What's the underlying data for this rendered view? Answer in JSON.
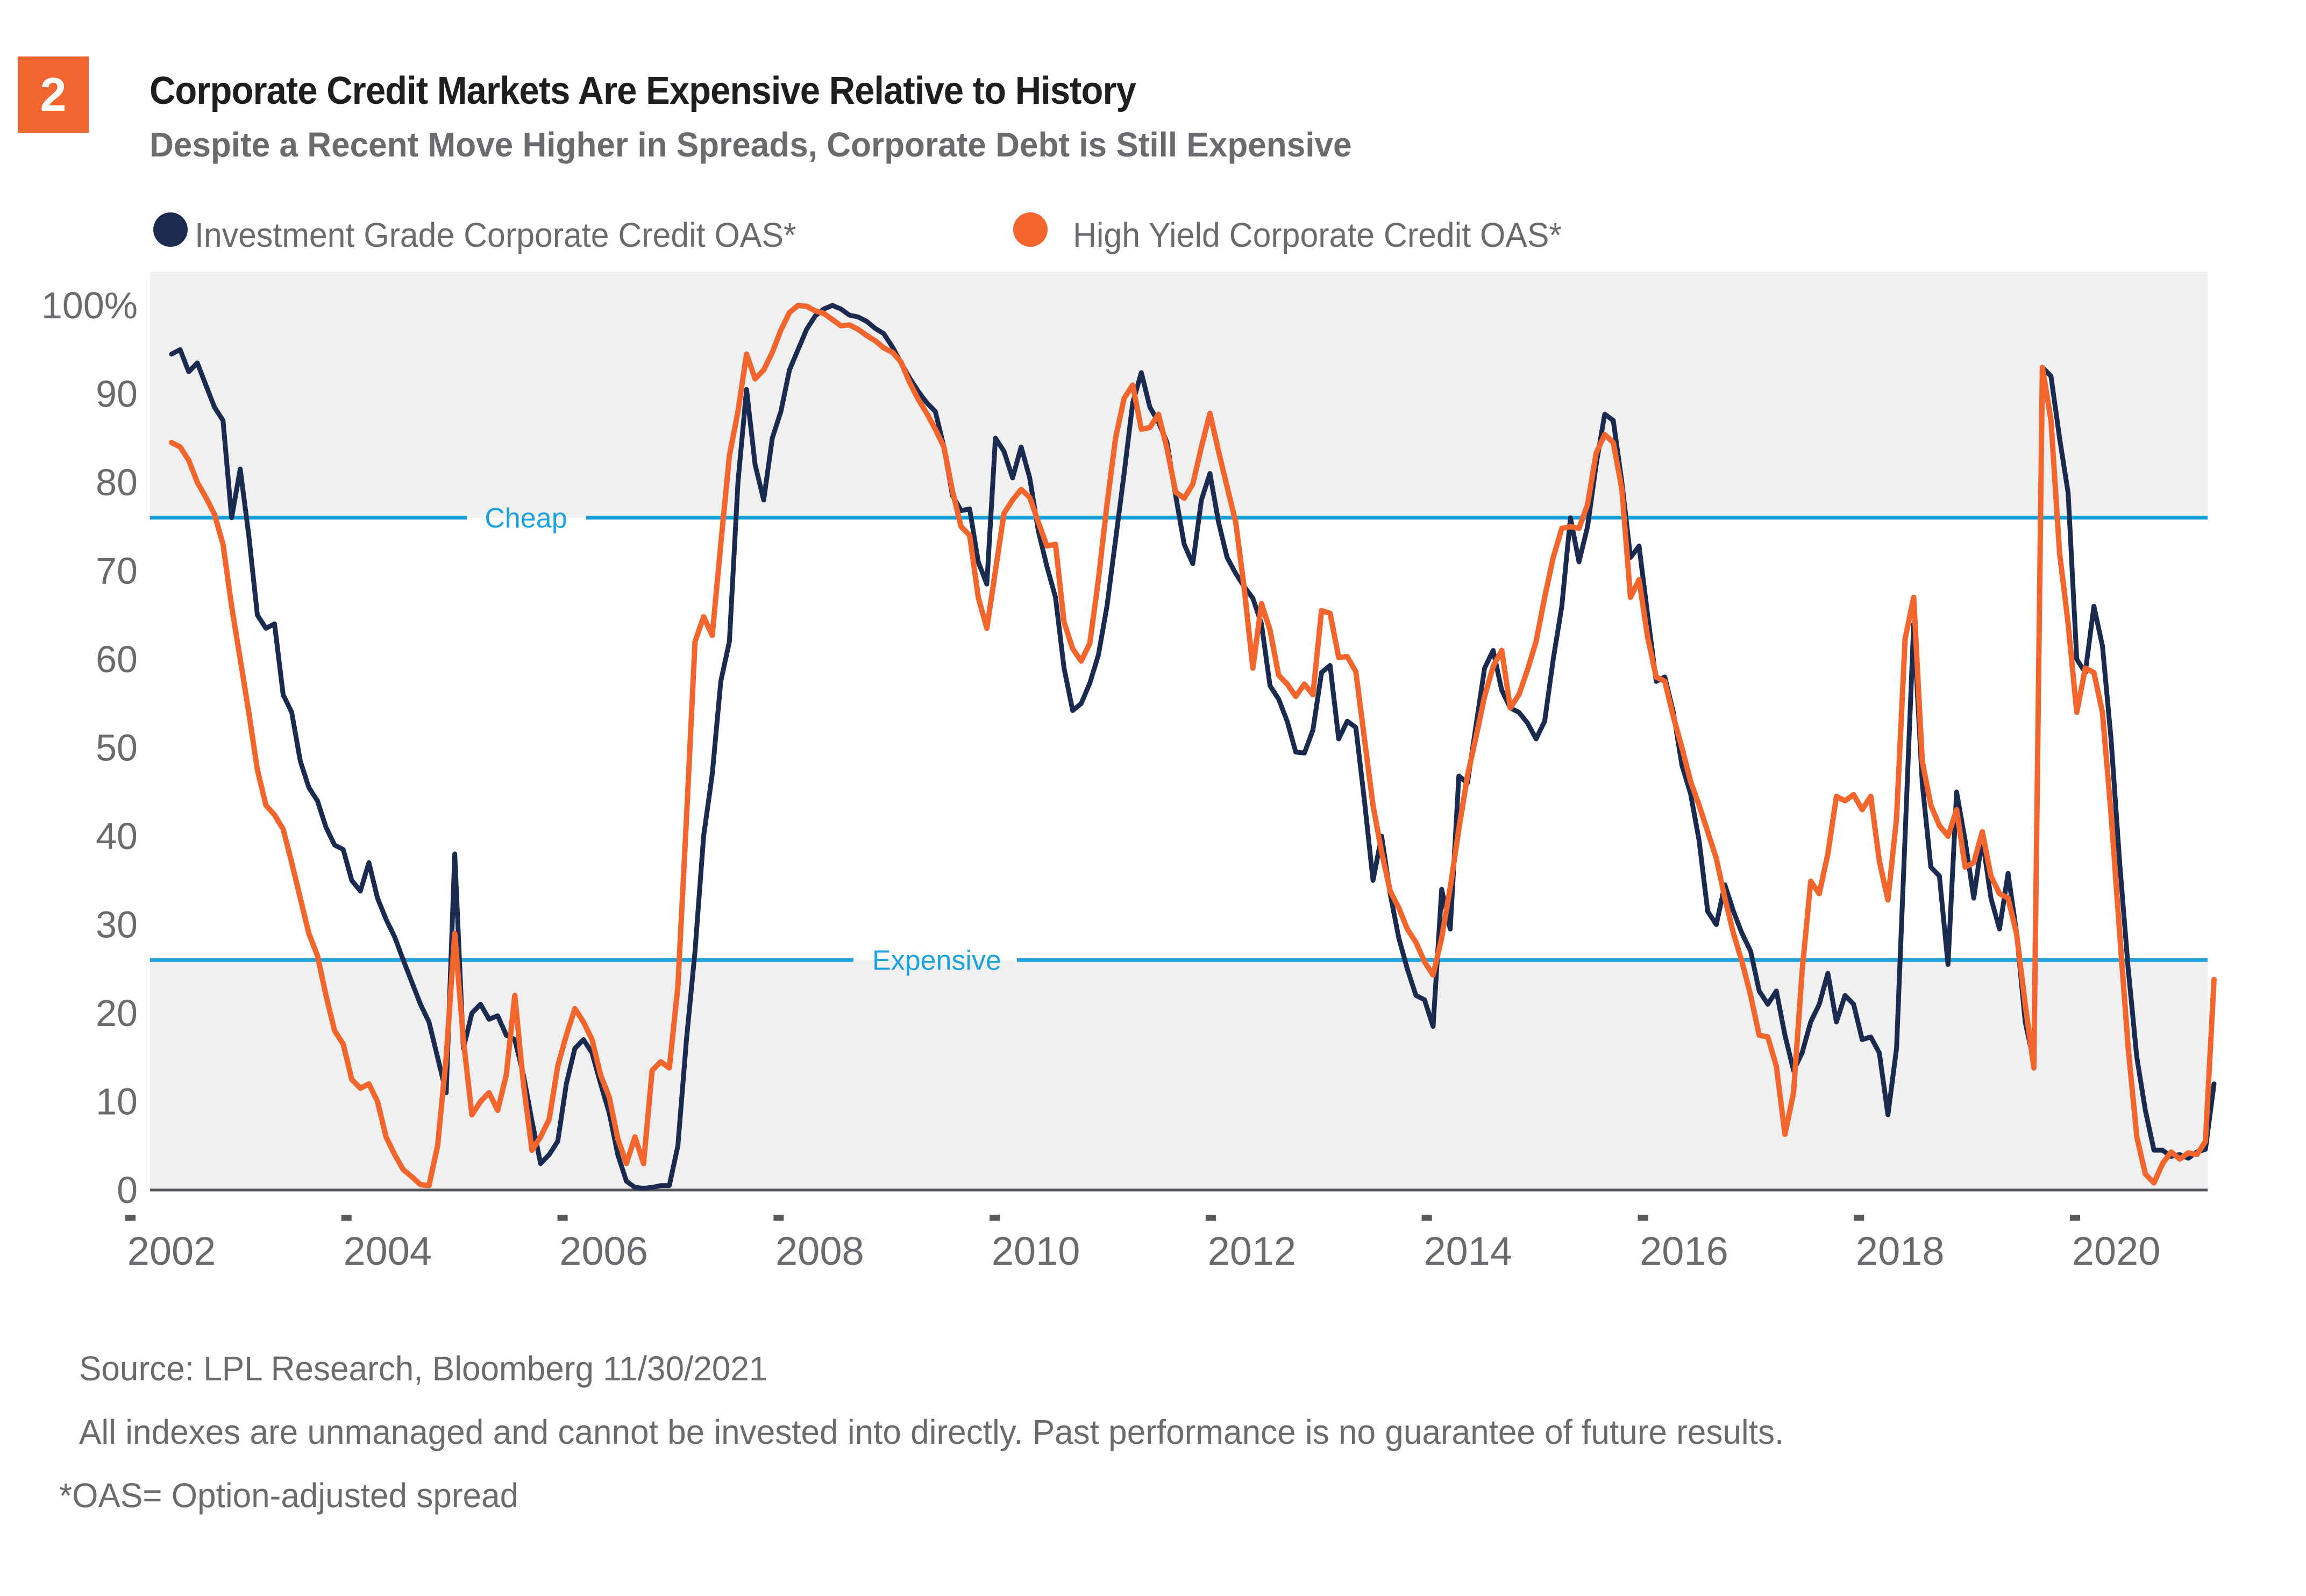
{
  "page": {
    "badge": "2"
  },
  "header": {
    "title": "Corporate Credit Markets Are Expensive Relative to History",
    "subtitle": "Despite a Recent Move Higher in Spreads, Corporate Debt is Still Expensive"
  },
  "legend": {
    "items": [
      {
        "label": "Investment Grade Corporate Credit OAS*"
      },
      {
        "label": "High Yield Corporate Credit OAS*"
      }
    ]
  },
  "chart_data": {
    "type": "line",
    "title": "Corporate Credit Markets Are Expensive Relative to History",
    "frequency": "monthly",
    "x_axis": {
      "labels": [
        "2002",
        "2004",
        "2006",
        "2008",
        "2010",
        "2012",
        "2014",
        "2016",
        "2018",
        "2020"
      ],
      "start": "Jan 2002",
      "end": "Nov 2021"
    },
    "y_axis": {
      "labels": [
        "100%",
        "90",
        "80",
        "70",
        "60",
        "50",
        "40",
        "30",
        "20",
        "10",
        "0"
      ],
      "min": 0,
      "max": 100
    },
    "grid": false,
    "legend_position": "top",
    "reference_lines": [
      {
        "label": "Cheap",
        "value": 76,
        "color": "#1CA3DD"
      },
      {
        "label": "Expensive",
        "value": 26,
        "color": "#1CA3DD"
      }
    ],
    "band_color": "#F0F0F1",
    "series": [
      {
        "name": "Investment Grade Corporate Credit OAS*",
        "color": "#1B2B50",
        "values": [
          94.5,
          95,
          92.5,
          93.5,
          91,
          88.5,
          87,
          76,
          81.5,
          74,
          65,
          63.5,
          64,
          56,
          54,
          48.5,
          45.5,
          44,
          41,
          39,
          38.5,
          35,
          33.8,
          37,
          33,
          30.6,
          28.6,
          26,
          23.5,
          21,
          19,
          15,
          11,
          38,
          16,
          20,
          21,
          19.3,
          19.7,
          17.5,
          17,
          13,
          7.8,
          3,
          4,
          5.5,
          12,
          16,
          17,
          15.5,
          12,
          8.7,
          4,
          1,
          0.3,
          0.2,
          0.3,
          0.5,
          0.5,
          5,
          17,
          27,
          40,
          47,
          57.5,
          62,
          80,
          90.5,
          82,
          78,
          85,
          88,
          92.7,
          95,
          97.3,
          98.8,
          99.6,
          100,
          99.6,
          98.9,
          98.7,
          98.2,
          97.4,
          96.8,
          95.3,
          93.5,
          91.8,
          90.3,
          89,
          88,
          84,
          78.5,
          76.8,
          77,
          71,
          68.5,
          85,
          83.5,
          80.5,
          84,
          80.5,
          74.5,
          70.5,
          67,
          59,
          54.2,
          55,
          57.3,
          60.5,
          66,
          73.5,
          81,
          89,
          92.4,
          88.5,
          86.8,
          84.5,
          78.5,
          73,
          70.8,
          78,
          81,
          75.5,
          71.5,
          69.7,
          68.2,
          66.9,
          64,
          57,
          55.5,
          53,
          49.5,
          49.4,
          52,
          58.5,
          59.3,
          51,
          53,
          52.3,
          44,
          35,
          40,
          33.5,
          28.5,
          25,
          22,
          21.5,
          18.5,
          34,
          29.5,
          46.8,
          46,
          52.5,
          59,
          61,
          56.5,
          54.5,
          54,
          52.8,
          51,
          53,
          60,
          66,
          76,
          71,
          75,
          82,
          87.7,
          87,
          80,
          71.5,
          72.8,
          65,
          57.5,
          58,
          54,
          48,
          44.8,
          39.5,
          31.5,
          30,
          34.5,
          31.5,
          29,
          27,
          22.5,
          21,
          22.5,
          17.5,
          13.5,
          15.5,
          19,
          21,
          24.5,
          19,
          22,
          21,
          17,
          17.3,
          15.5,
          8.5,
          16,
          40,
          64,
          46,
          36.5,
          35.5,
          25.5,
          45,
          39.5,
          33,
          39.8,
          33,
          29.5,
          35.8,
          29,
          19,
          14.5,
          93,
          92,
          85,
          78.8,
          60,
          58.5,
          66,
          61.5,
          51,
          37,
          25,
          15,
          9,
          4.5,
          4.5,
          3.8,
          4,
          3.6,
          4.3,
          4.6,
          12
        ]
      },
      {
        "name": "High Yield Corporate Credit OAS*",
        "color": "#F2662D",
        "values": [
          84.5,
          84,
          82.5,
          80,
          78.3,
          76.4,
          73,
          66,
          60,
          54,
          47.5,
          43.5,
          42.4,
          40.8,
          37,
          33,
          29,
          26.5,
          22,
          18,
          16.5,
          12.5,
          11.5,
          12,
          10,
          6,
          4,
          2.3,
          1.5,
          0.6,
          0.5,
          5,
          15,
          29,
          17,
          8.5,
          10,
          11,
          9,
          13,
          22,
          12,
          4.5,
          6,
          8,
          14,
          17.5,
          20.5,
          19,
          17,
          13,
          10.5,
          5.8,
          3,
          6,
          3,
          13.5,
          14.5,
          13.8,
          23,
          42,
          62,
          64.8,
          62.7,
          73,
          83,
          88,
          94.5,
          91.7,
          92.7,
          94.7,
          97.2,
          99.2,
          100,
          99.9,
          99.4,
          99.1,
          98.4,
          97.7,
          97.8,
          97.3,
          96.6,
          96,
          95.2,
          94.7,
          93.6,
          91.3,
          89.4,
          87.8,
          86,
          84,
          79,
          75,
          74,
          67,
          63.5,
          70,
          76.5,
          78,
          79.2,
          78.3,
          75.5,
          72.8,
          73,
          64.2,
          61.2,
          59.8,
          61.8,
          69,
          77.5,
          85,
          89.5,
          91,
          86,
          86.2,
          87.7,
          83.8,
          78.9,
          78.2,
          79.8,
          84,
          87.8,
          83.5,
          79.5,
          75.5,
          68,
          59,
          66.3,
          63.3,
          58.2,
          57.2,
          55.8,
          57.2,
          56,
          65.5,
          65.2,
          60.2,
          60.3,
          58.6,
          51,
          43.5,
          38.2,
          33.8,
          31.9,
          29.5,
          28,
          25.8,
          24.3,
          28.5,
          34.2,
          40.8,
          46.8,
          51.2,
          55.8,
          59.2,
          61,
          54.5,
          56,
          58.8,
          62,
          67,
          71.5,
          74.8,
          75,
          74.8,
          77.5,
          83.3,
          85.4,
          84.5,
          79.2,
          67,
          69,
          62.5,
          58,
          57.5,
          53.5,
          50,
          46.2,
          43.5,
          40.5,
          37.5,
          33,
          29,
          25.8,
          22,
          17.5,
          17.3,
          14,
          6.3,
          11,
          24.7,
          34.9,
          33.5,
          38,
          44.5,
          44,
          44.7,
          43,
          44.5,
          37.2,
          32.8,
          42,
          62.3,
          67,
          48.5,
          43.5,
          41.2,
          40,
          43,
          36.5,
          37,
          40.5,
          35.5,
          33.5,
          33,
          28.9,
          21,
          13.8,
          93,
          87,
          72,
          64,
          54,
          59,
          58.5,
          54,
          42.5,
          29,
          16,
          6,
          1.8,
          0.8,
          3,
          4.3,
          3.5,
          4.2,
          4,
          5.5,
          23.8
        ]
      }
    ]
  },
  "footer": {
    "source": "Source: LPL Research, Bloomberg 11/30/2021",
    "disclaimer": "All indexes are unmanaged and cannot be invested into directly. Past performance is no guarantee of future results.",
    "footnote": "*OAS= Option-adjusted spread"
  },
  "colors": {
    "badge_background": "#F1662F",
    "reference_line": "#1CA3DD",
    "band": "#F0F0F1",
    "axis": "#55565A"
  }
}
